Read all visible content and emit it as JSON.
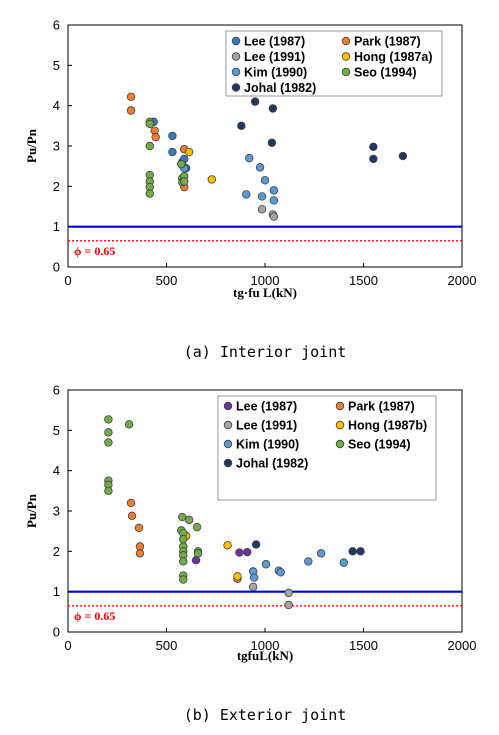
{
  "chart_data": [
    {
      "type": "scatter",
      "caption": "(a) Interior joint",
      "xlabel": "tg·fu L(kN)",
      "ylabel": "Pu/Pn",
      "xlim": [
        0,
        2000
      ],
      "ylim": [
        0,
        6
      ],
      "xticks": [
        0,
        500,
        1000,
        1500,
        2000
      ],
      "yticks": [
        0,
        1,
        2,
        3,
        4,
        5,
        6
      ],
      "grid": false,
      "legend_position": "top-right",
      "reference_lines": [
        {
          "y": 1.0,
          "style": "solid",
          "color": "#0000cc"
        },
        {
          "y": 0.65,
          "style": "dotted",
          "color": "#ff0000",
          "label": "ϕ = 0.65"
        }
      ],
      "series": [
        {
          "name": "Lee (1987)",
          "color": "#3a78c4",
          "points": [
            [
              435,
              3.6
            ],
            [
              530,
              3.25
            ],
            [
              530,
              2.85
            ],
            [
              580,
              2.6
            ],
            [
              590,
              2.68
            ],
            [
              600,
              2.45
            ]
          ]
        },
        {
          "name": "Park (1987)",
          "color": "#ed7d31",
          "points": [
            [
              320,
              4.22
            ],
            [
              320,
              3.88
            ],
            [
              440,
              3.38
            ],
            [
              445,
              3.22
            ],
            [
              590,
              2.92
            ],
            [
              590,
              1.98
            ]
          ]
        },
        {
          "name": "Lee (1991)",
          "color": "#a5a5a5",
          "points": [
            [
              985,
              1.43
            ],
            [
              1040,
              1.3
            ],
            [
              1045,
              1.25
            ]
          ]
        },
        {
          "name": "Hong (1987a)",
          "color": "#ffc000",
          "points": [
            [
              615,
              2.85
            ],
            [
              730,
              2.17
            ]
          ]
        },
        {
          "name": "Kim (1990)",
          "color": "#5b9bd5",
          "points": [
            [
              590,
              2.45
            ],
            [
              905,
              1.8
            ],
            [
              920,
              2.7
            ],
            [
              975,
              2.47
            ],
            [
              985,
              1.75
            ],
            [
              1000,
              2.15
            ],
            [
              1045,
              1.9
            ],
            [
              1045,
              1.65
            ]
          ]
        },
        {
          "name": "Seo (1994)",
          "color": "#70ad47",
          "points": [
            [
              415,
              3.6
            ],
            [
              415,
              3.55
            ],
            [
              415,
              3.0
            ],
            [
              415,
              2.28
            ],
            [
              415,
              2.12
            ],
            [
              415,
              1.98
            ],
            [
              415,
              1.82
            ],
            [
              575,
              2.55
            ],
            [
              580,
              2.2
            ],
            [
              580,
              2.1
            ],
            [
              590,
              2.25
            ],
            [
              590,
              2.12
            ]
          ]
        },
        {
          "name": "Johal (1982)",
          "color": "#1f3864",
          "points": [
            [
              880,
              3.5
            ],
            [
              950,
              4.1
            ],
            [
              1035,
              3.08
            ],
            [
              1040,
              3.93
            ],
            [
              1550,
              2.98
            ],
            [
              1550,
              2.68
            ],
            [
              1700,
              2.75
            ]
          ]
        }
      ]
    },
    {
      "type": "scatter",
      "caption": "(b) Exterior joint",
      "xlabel": "tgfuL(kN)",
      "ylabel": "Pu/Pn",
      "xlim": [
        0,
        2000
      ],
      "ylim": [
        0,
        6
      ],
      "xticks": [
        0,
        500,
        1000,
        1500,
        2000
      ],
      "yticks": [
        0,
        1,
        2,
        3,
        4,
        5,
        6
      ],
      "grid": false,
      "legend_position": "top-right",
      "reference_lines": [
        {
          "y": 1.0,
          "style": "solid",
          "color": "#0000cc"
        },
        {
          "y": 0.65,
          "style": "dotted",
          "color": "#ff0000",
          "label": "ϕ = 0.65"
        }
      ],
      "series": [
        {
          "name": "Lee (1987)",
          "color": "#7030a0",
          "points": [
            [
              650,
              1.78
            ],
            [
              870,
              1.97
            ],
            [
              910,
              1.98
            ]
          ]
        },
        {
          "name": "Park (1987)",
          "color": "#ed7d31",
          "points": [
            [
              320,
              3.2
            ],
            [
              325,
              2.88
            ],
            [
              360,
              2.58
            ],
            [
              365,
              2.12
            ],
            [
              365,
              1.95
            ],
            [
              860,
              1.32
            ]
          ]
        },
        {
          "name": "Lee (1991)",
          "color": "#a5a5a5",
          "points": [
            [
              940,
              1.12
            ],
            [
              1120,
              0.97
            ],
            [
              1120,
              0.67
            ]
          ]
        },
        {
          "name": "Hong (1987b)",
          "color": "#ffc000",
          "points": [
            [
              600,
              2.38
            ],
            [
              810,
              2.15
            ],
            [
              860,
              1.38
            ]
          ]
        },
        {
          "name": "Kim (1990)",
          "color": "#5b9bd5",
          "points": [
            [
              940,
              1.5
            ],
            [
              945,
              1.35
            ],
            [
              1005,
              1.68
            ],
            [
              1070,
              1.52
            ],
            [
              1080,
              1.48
            ],
            [
              1220,
              1.75
            ],
            [
              1285,
              1.95
            ],
            [
              1400,
              1.72
            ]
          ]
        },
        {
          "name": "Seo (1994)",
          "color": "#70ad47",
          "points": [
            [
              205,
              5.27
            ],
            [
              205,
              4.95
            ],
            [
              205,
              4.7
            ],
            [
              205,
              3.75
            ],
            [
              205,
              3.65
            ],
            [
              205,
              3.5
            ],
            [
              310,
              5.15
            ],
            [
              575,
              2.52
            ],
            [
              580,
              2.85
            ],
            [
              585,
              2.45
            ],
            [
              585,
              2.3
            ],
            [
              585,
              2.12
            ],
            [
              585,
              2.0
            ],
            [
              585,
              1.9
            ],
            [
              585,
              1.75
            ],
            [
              585,
              1.4
            ],
            [
              585,
              1.3
            ],
            [
              615,
              2.78
            ],
            [
              655,
              2.6
            ],
            [
              660,
              2.0
            ],
            [
              660,
              1.95
            ]
          ]
        },
        {
          "name": "Johal (1982)",
          "color": "#1f3864",
          "points": [
            [
              955,
              2.17
            ],
            [
              1445,
              2.0
            ],
            [
              1485,
              2.0
            ]
          ]
        }
      ]
    }
  ]
}
